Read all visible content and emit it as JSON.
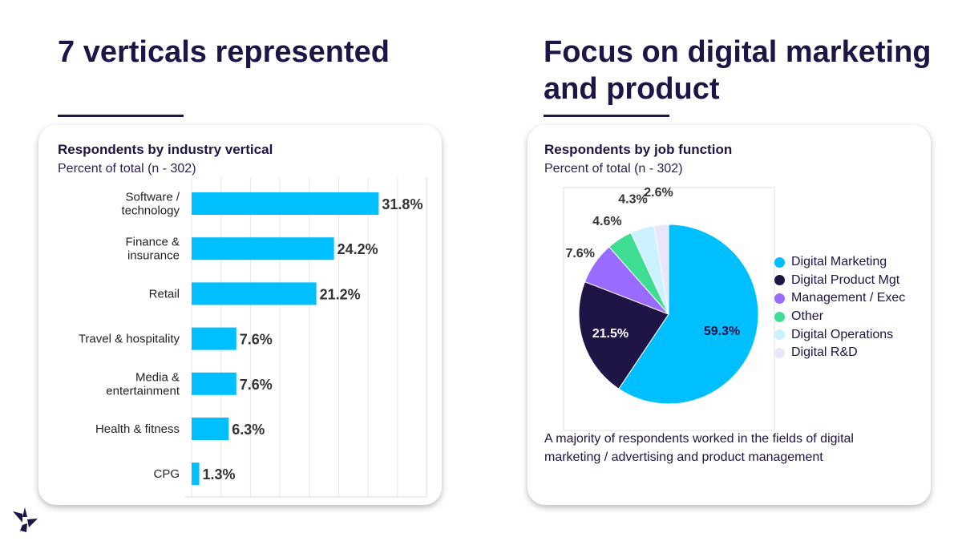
{
  "left": {
    "headline": "7 verticals represented",
    "card_title": "Respondents by industry vertical",
    "card_subtitle": "Percent of total (n - 302)"
  },
  "right": {
    "headline": "Focus on digital marketing and product",
    "card_title": "Respondents by job function",
    "card_subtitle": "Percent of total (n - 302)",
    "note": "A majority of respondents worked in the fields of digital marketing / advertising and product management"
  },
  "colors": {
    "navy": "#1f1446",
    "bar": "#00bfff"
  },
  "chart_data": [
    {
      "type": "bar",
      "orientation": "horizontal",
      "title": "Respondents by industry vertical",
      "subtitle": "Percent of total (n - 302)",
      "categories": [
        [
          "Software /",
          "technology"
        ],
        [
          "Finance &",
          "insurance"
        ],
        [
          "Retail"
        ],
        [
          "Travel & hospitality"
        ],
        [
          "Media &",
          "entertainment"
        ],
        [
          "Health & fitness"
        ],
        [
          "CPG"
        ]
      ],
      "values": [
        31.8,
        24.2,
        21.2,
        7.6,
        7.6,
        6.3,
        1.3
      ],
      "data_labels": [
        "31.8%",
        "24.2%",
        "21.2%",
        "7.6%",
        "7.6%",
        "6.3%",
        "1.3%"
      ],
      "xlim": [
        0,
        40
      ],
      "grid": true,
      "bar_color": "#00bfff"
    },
    {
      "type": "pie",
      "title": "Respondents by job function",
      "subtitle": "Percent of total (n - 302)",
      "labels": [
        "Digital Marketing",
        "Digital Product Mgt",
        "Management / Exec",
        "Other",
        "Digital Operations",
        "Digital R&D"
      ],
      "values": [
        59.3,
        21.5,
        7.6,
        4.6,
        4.3,
        2.6
      ],
      "data_labels": [
        "59.3%",
        "21.5%",
        "7.6%",
        "4.6%",
        "4.3%",
        "2.6%"
      ],
      "colors": [
        "#00bfff",
        "#1f1446",
        "#9a6bff",
        "#3fdd94",
        "#ccf1ff",
        "#ebe5fb"
      ],
      "legend_position": "right"
    }
  ]
}
